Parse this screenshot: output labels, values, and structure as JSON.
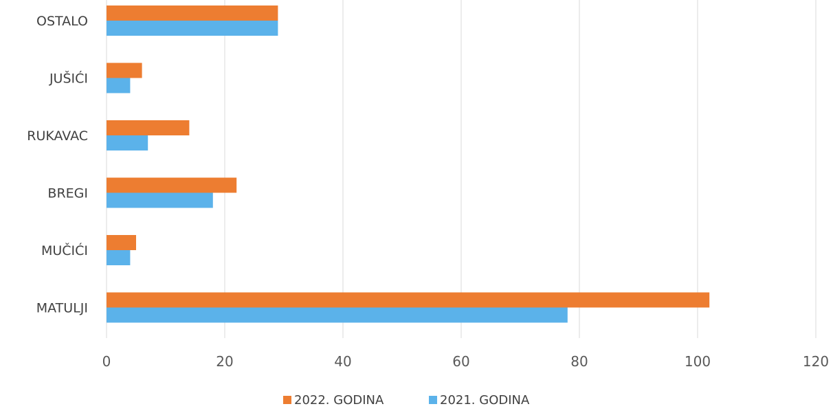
{
  "chart_data": {
    "type": "bar",
    "orientation": "horizontal",
    "categories": [
      "OSTALO",
      "JUŠIĆI",
      "RUKAVAC",
      "BREGI",
      "MUČIĆI",
      "MATULJI"
    ],
    "series": [
      {
        "name": "2022. GODINA",
        "color": "#ED7D31",
        "values": [
          29,
          6,
          14,
          22,
          5,
          102
        ]
      },
      {
        "name": "2021. GODINA",
        "color": "#5BB2EA",
        "values": [
          29,
          4,
          7,
          18,
          4,
          78
        ]
      }
    ],
    "xlim": [
      0,
      120
    ],
    "xticks": [
      "0",
      "20",
      "40",
      "60",
      "80",
      "100",
      "120"
    ],
    "grid": true,
    "legend_position": "bottom"
  }
}
